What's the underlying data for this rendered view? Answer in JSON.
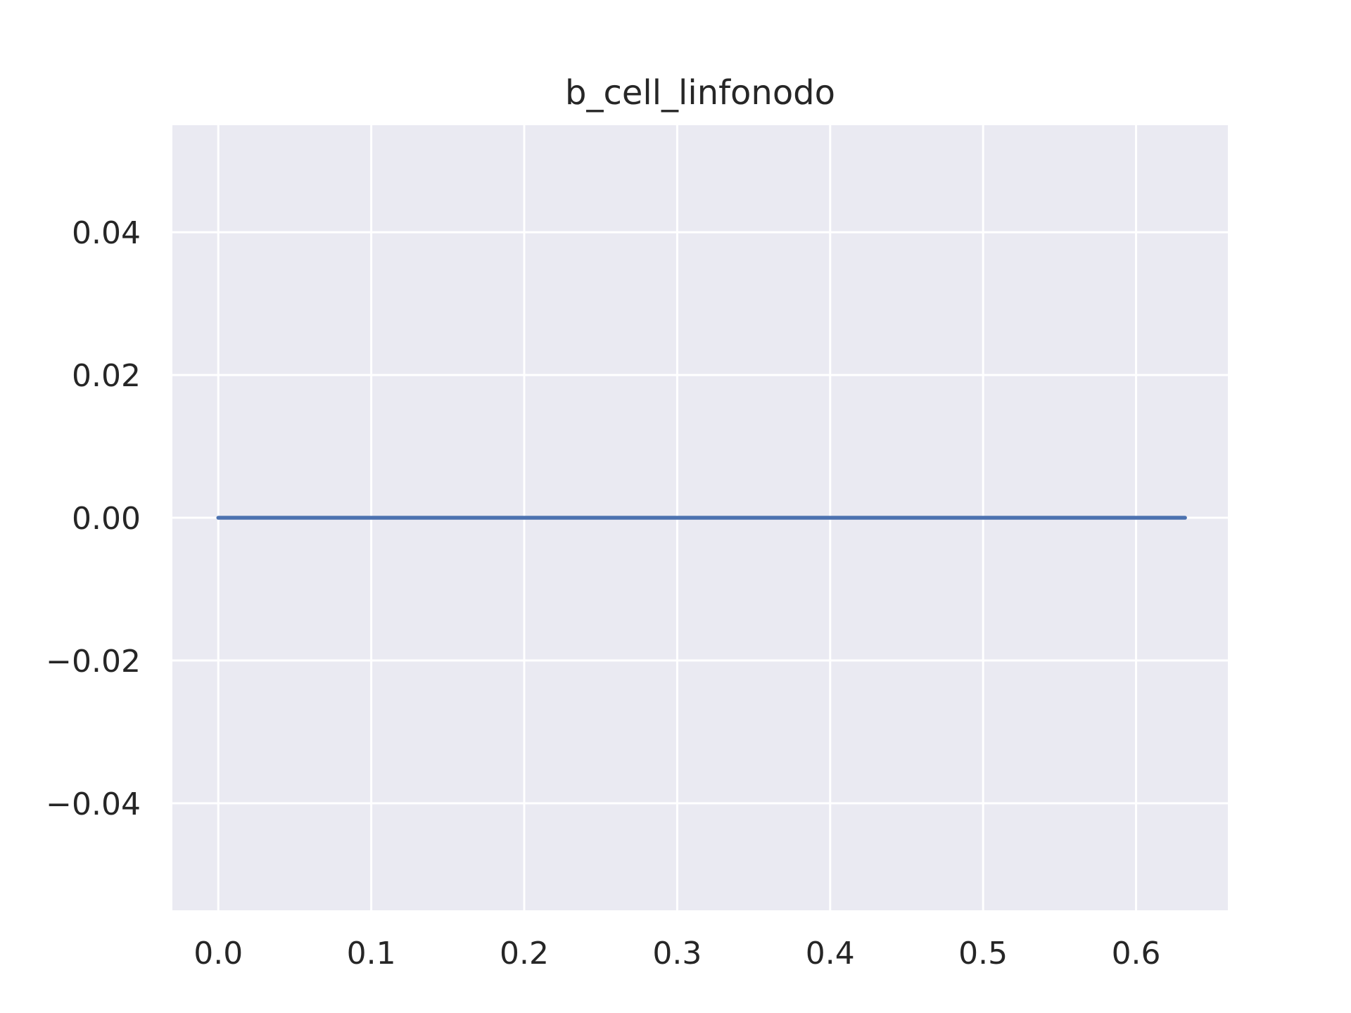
{
  "chart_data": {
    "type": "line",
    "title": "b_cell_linfonodo",
    "xlabel": "",
    "ylabel": "",
    "xlim": [
      -0.03,
      0.66
    ],
    "ylim": [
      -0.055,
      0.055
    ],
    "x_ticks": [
      0.0,
      0.1,
      0.2,
      0.3,
      0.4,
      0.5,
      0.6
    ],
    "x_tick_labels": [
      "0.0",
      "0.1",
      "0.2",
      "0.3",
      "0.4",
      "0.5",
      "0.6"
    ],
    "y_ticks": [
      0.04,
      0.02,
      0.0,
      -0.02,
      -0.04
    ],
    "y_tick_labels": [
      "0.04",
      "0.02",
      "0.00",
      "−0.02",
      "−0.04"
    ],
    "grid": true,
    "background_color": "#eaeaf2",
    "grid_color": "#ffffff",
    "series": [
      {
        "color": "#4c72b0",
        "x": [
          0.0,
          0.632
        ],
        "y": [
          0.0,
          0.0
        ]
      }
    ]
  }
}
